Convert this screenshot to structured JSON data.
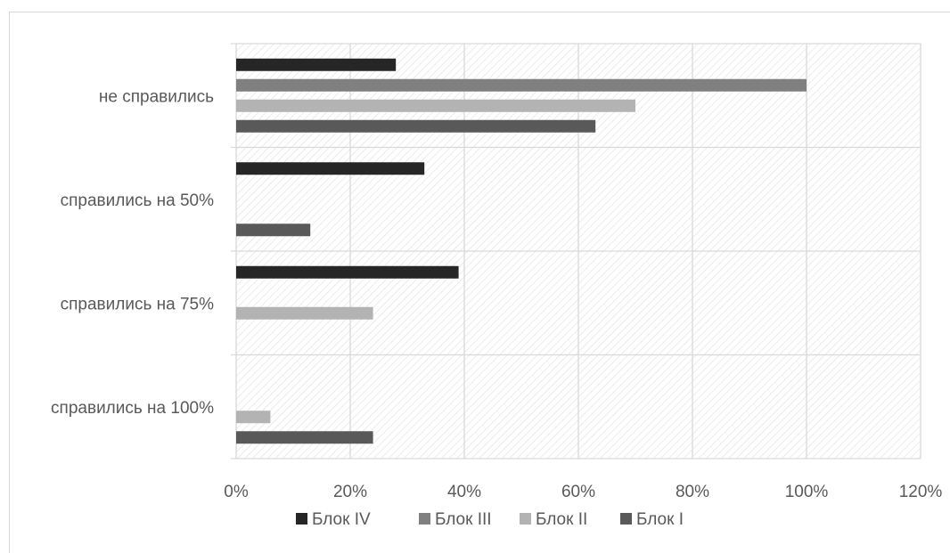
{
  "chart_data": {
    "type": "bar",
    "orientation": "horizontal",
    "categories": [
      "справились на 100%",
      "справились на 75%",
      "справились на 50%",
      "не справились"
    ],
    "series": [
      {
        "name": "Блок IV",
        "color": "#262626",
        "values": [
          0,
          39,
          33,
          28
        ]
      },
      {
        "name": "Блок III",
        "color": "#808080",
        "values": [
          0,
          0,
          0,
          100
        ]
      },
      {
        "name": "Блок II",
        "color": "#b3b3b3",
        "values": [
          6,
          24,
          0,
          70
        ]
      },
      {
        "name": "Блок I",
        "color": "#595959",
        "values": [
          24,
          0,
          13,
          63
        ]
      }
    ],
    "x_ticks": [
      "0%",
      "20%",
      "40%",
      "60%",
      "80%",
      "100%",
      "120%"
    ],
    "xlim": [
      0,
      120
    ],
    "value_unit": "%",
    "grid": true,
    "legend_position": "bottom"
  }
}
